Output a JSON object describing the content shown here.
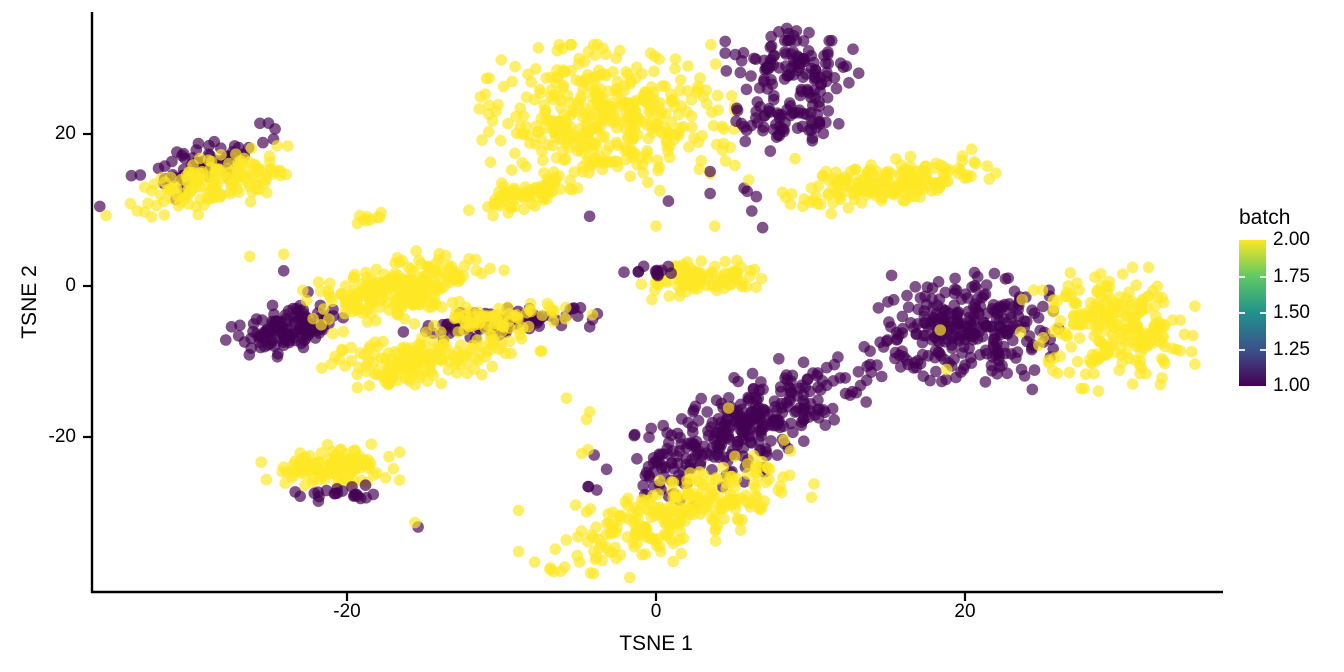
{
  "chart_data": {
    "type": "scatter",
    "title": "",
    "xlabel": "TSNE 1",
    "ylabel": "TSNE 2",
    "xlim": [
      -36.5,
      36.5
    ],
    "ylim": [
      -40,
      36
    ],
    "grid": false,
    "legend_position": "right",
    "x_ticks": [
      {
        "value": -20,
        "label": "-20"
      },
      {
        "value": 0,
        "label": "0"
      },
      {
        "value": 20,
        "label": "20"
      }
    ],
    "y_ticks": [
      {
        "value": 20,
        "label": "20"
      },
      {
        "value": 0,
        "label": "0"
      },
      {
        "value": -20,
        "label": "-20"
      }
    ],
    "legend": {
      "title": "batch",
      "colormap": "viridis",
      "min": 1.0,
      "max": 2.0,
      "tick_labels": [
        "2.00",
        "1.75",
        "1.50",
        "1.25",
        "1.00"
      ]
    },
    "batch_colors": {
      "1": "#440154",
      "2": "#FDE725"
    },
    "point_alpha": 0.68,
    "point_radius": 5.8,
    "clusters": [
      {
        "batch": 1,
        "center": [
          -29.1,
          16.4
        ],
        "sd": [
          2.8,
          1.1
        ],
        "angle": 45,
        "n": 70
      },
      {
        "batch": 2,
        "center": [
          -28.4,
          13.8
        ],
        "sd": [
          2.7,
          1.5
        ],
        "angle": 38,
        "n": 150
      },
      {
        "batch": 2,
        "center": [
          -3.3,
          22.0
        ],
        "sd": [
          3.5,
          4.1
        ],
        "angle": 0,
        "n": 430
      },
      {
        "batch": 2,
        "center": [
          -8.4,
          12.1
        ],
        "sd": [
          1.8,
          0.9
        ],
        "angle": 31,
        "n": 75
      },
      {
        "batch": 2,
        "center": [
          -18.3,
          8.8
        ],
        "sd": [
          0.8,
          0.5
        ],
        "angle": 20,
        "n": 9
      },
      {
        "batch": 1,
        "center": [
          8.8,
          28.6
        ],
        "sd": [
          1.8,
          2.4
        ],
        "angle": 0,
        "n": 120
      },
      {
        "batch": 1,
        "center": [
          8.5,
          21.7
        ],
        "sd": [
          1.6,
          1.2
        ],
        "angle": 0,
        "n": 60
      },
      {
        "batch": 2,
        "center": [
          15.1,
          13.6
        ],
        "sd": [
          2.9,
          1.2
        ],
        "angle": 18,
        "n": 190
      },
      {
        "batch": 2,
        "center": [
          3.0,
          0.9
        ],
        "sd": [
          1.9,
          1.0
        ],
        "angle": 10,
        "n": 95
      },
      {
        "batch": 1,
        "center": [
          -0.3,
          1.8
        ],
        "sd": [
          1.0,
          0.6
        ],
        "angle": 15,
        "n": 13
      },
      {
        "batch": 1,
        "center": [
          -23.6,
          -5.6
        ],
        "sd": [
          1.8,
          1.3
        ],
        "angle": 40,
        "n": 130
      },
      {
        "batch": 2,
        "center": [
          -16.5,
          -0.3
        ],
        "sd": [
          2.9,
          1.5
        ],
        "angle": 33,
        "n": 240
      },
      {
        "batch": 1,
        "center": [
          -9.9,
          -4.9
        ],
        "sd": [
          2.8,
          0.8
        ],
        "angle": 12,
        "n": 90
      },
      {
        "batch": 2,
        "center": [
          -10.4,
          -4.2
        ],
        "sd": [
          2.6,
          0.8
        ],
        "angle": 12,
        "n": 65
      },
      {
        "batch": 2,
        "center": [
          -14.6,
          -9.5
        ],
        "sd": [
          2.9,
          1.4
        ],
        "angle": 24,
        "n": 180
      },
      {
        "batch": 1,
        "center": [
          19.9,
          -5.3
        ],
        "sd": [
          2.6,
          3.1
        ],
        "angle": -10,
        "n": 290
      },
      {
        "batch": 2,
        "center": [
          29.6,
          -5.7
        ],
        "sd": [
          2.2,
          3.4
        ],
        "angle": 0,
        "n": 240
      },
      {
        "batch": 1,
        "center": [
          5.4,
          -19.0
        ],
        "sd": [
          5.0,
          2.0
        ],
        "angle": 50,
        "n": 330
      },
      {
        "batch": 2,
        "center": [
          1.3,
          -30.0
        ],
        "sd": [
          4.6,
          1.9
        ],
        "angle": 44,
        "n": 270
      },
      {
        "batch": 2,
        "center": [
          -21.0,
          -23.8
        ],
        "sd": [
          1.9,
          1.2
        ],
        "angle": 5,
        "n": 120
      },
      {
        "batch": 1,
        "center": [
          -20.5,
          -27.2
        ],
        "sd": [
          1.3,
          0.55
        ],
        "angle": 0,
        "n": 22
      }
    ],
    "outlier_points": [
      {
        "batch": 1,
        "x": -4.3,
        "y": 9.2
      },
      {
        "batch": 1,
        "x": 0.8,
        "y": 11.2
      },
      {
        "batch": 1,
        "x": 3.5,
        "y": 15.1
      },
      {
        "batch": 1,
        "x": 5.7,
        "y": 12.9
      },
      {
        "batch": 1,
        "x": 3.5,
        "y": 12.2
      },
      {
        "batch": 1,
        "x": 5.9,
        "y": 12.5
      },
      {
        "batch": 1,
        "x": 6.5,
        "y": 11.8
      },
      {
        "batch": 1,
        "x": 6.2,
        "y": 9.9
      },
      {
        "batch": 1,
        "x": 7.4,
        "y": 17.8
      },
      {
        "batch": 1,
        "x": 6.9,
        "y": 7.7
      },
      {
        "batch": 1,
        "x": -24.1,
        "y": 2.0
      },
      {
        "batch": 1,
        "x": -15.4,
        "y": -31.8
      },
      {
        "batch": 1,
        "x": -36.0,
        "y": 10.5
      },
      {
        "batch": 1,
        "x": -4.0,
        "y": -22.3
      },
      {
        "batch": 1,
        "x": 24.5,
        "y": -11.1
      },
      {
        "batch": 2,
        "x": 2.8,
        "y": 15.4
      },
      {
        "batch": 2,
        "x": 3.8,
        "y": 7.9
      },
      {
        "batch": 2,
        "x": 0.0,
        "y": 7.9
      },
      {
        "batch": 2,
        "x": 4.5,
        "y": 16.5
      },
      {
        "batch": 2,
        "x": 6.0,
        "y": 14.0
      },
      {
        "batch": 2,
        "x": 9.0,
        "y": 16.8
      },
      {
        "batch": 2,
        "x": -4.3,
        "y": -16.6
      },
      {
        "batch": 2,
        "x": -4.5,
        "y": -17.6
      },
      {
        "batch": 2,
        "x": -4.8,
        "y": -22.1
      },
      {
        "batch": 2,
        "x": -5.8,
        "y": -14.8
      },
      {
        "batch": 2,
        "x": -4.4,
        "y": -21.6
      },
      {
        "batch": 2,
        "x": -5.2,
        "y": -28.9
      },
      {
        "batch": 2,
        "x": -8.9,
        "y": -29.6
      },
      {
        "batch": 2,
        "x": -15.6,
        "y": -31.2
      },
      {
        "batch": 2,
        "x": -17.5,
        "y": -25.3
      },
      {
        "batch": 2,
        "x": -17.0,
        "y": -24.1
      },
      {
        "batch": 2,
        "x": -16.6,
        "y": -25.6
      },
      {
        "batch": 2,
        "x": -26.3,
        "y": 3.9
      },
      {
        "batch": 2,
        "x": -24.1,
        "y": 4.2
      },
      {
        "batch": 2,
        "x": -35.6,
        "y": 9.3
      },
      {
        "batch": 2,
        "x": 4.7,
        "y": -16.1
      },
      {
        "batch": 2,
        "x": 8.3,
        "y": -20.3
      },
      {
        "batch": 2,
        "x": 23.7,
        "y": -1.8
      },
      {
        "batch": 2,
        "x": 23.6,
        "y": -6.1
      },
      {
        "batch": 2,
        "x": 25.4,
        "y": -9.8
      },
      {
        "batch": 2,
        "x": 25.7,
        "y": -3.4
      },
      {
        "batch": 2,
        "x": 18.4,
        "y": -5.8
      },
      {
        "batch": 2,
        "x": 18.8,
        "y": -11.0
      }
    ]
  }
}
